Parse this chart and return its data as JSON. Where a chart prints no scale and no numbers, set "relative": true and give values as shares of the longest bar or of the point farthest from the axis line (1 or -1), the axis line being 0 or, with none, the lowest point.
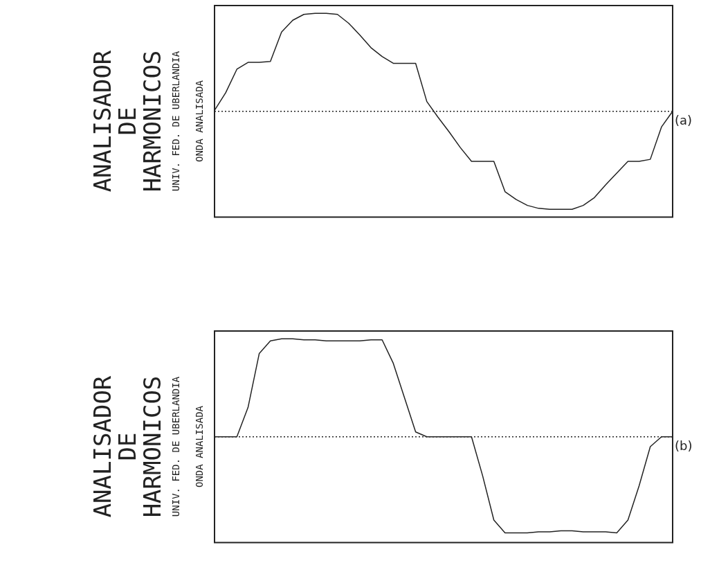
{
  "chart_data": [
    {
      "type": "line",
      "relative": true,
      "title": "ANALISADOR DE HARMONICOS",
      "subtitle": "UNIV. FED. DE UBERLANDIA",
      "annotations": [
        "ONDA ANALISADA",
        "(a)"
      ],
      "ref_lines": [
        {
          "axis": "y",
          "value": 0,
          "line_style": "dotted",
          "color": "#222222"
        }
      ],
      "categories": [
        null,
        null,
        null,
        null,
        null,
        null,
        null,
        null,
        null,
        null,
        null,
        null,
        null,
        null,
        null,
        null,
        null,
        null,
        null,
        null,
        null,
        null,
        null,
        null,
        null,
        null,
        null,
        null,
        null,
        null,
        null,
        null,
        null,
        null,
        null,
        null,
        null,
        null,
        null,
        null,
        null,
        null
      ],
      "series": [
        {
          "color": "#222222",
          "values": [
            0.01,
            0.19,
            0.43,
            0.5,
            0.5,
            0.51,
            0.81,
            0.93,
            0.99,
            1,
            1,
            0.99,
            0.9,
            0.78,
            0.65,
            0.56,
            0.49,
            0.49,
            0.49,
            0.1,
            -0.06,
            -0.21,
            -0.37,
            -0.51,
            -0.51,
            -0.51,
            -0.82,
            -0.9,
            -0.96,
            -0.99,
            -1,
            -1,
            -1,
            -0.96,
            -0.88,
            -0.75,
            -0.63,
            -0.51,
            -0.51,
            -0.49,
            -0.16,
            0
          ]
        }
      ]
    },
    {
      "type": "line",
      "relative": true,
      "title": "ANALISADOR DE HARMONICOS",
      "subtitle": "UNIV. FED. DE UBERLANDIA",
      "annotations": [
        "ONDA ANALISADA",
        "(b)"
      ],
      "ref_lines": [
        {
          "axis": "y",
          "value": 0,
          "line_style": "dotted",
          "color": "#222222"
        }
      ],
      "categories": [
        null,
        null,
        null,
        null,
        null,
        null,
        null,
        null,
        null,
        null,
        null,
        null,
        null,
        null,
        null,
        null,
        null,
        null,
        null,
        null,
        null,
        null,
        null,
        null,
        null,
        null,
        null,
        null,
        null,
        null,
        null,
        null,
        null,
        null,
        null,
        null,
        null,
        null,
        null,
        null,
        null,
        null
      ],
      "series": [
        {
          "color": "#222222",
          "values": [
            0,
            0,
            0,
            0.3,
            0.85,
            0.98,
            1,
            1,
            0.99,
            0.99,
            0.98,
            0.98,
            0.98,
            0.98,
            0.99,
            0.99,
            0.75,
            0.4,
            0.05,
            0,
            0,
            0,
            0,
            0,
            -0.4,
            -0.85,
            -0.98,
            -0.98,
            -0.98,
            -0.97,
            -0.97,
            -0.96,
            -0.96,
            -0.97,
            -0.97,
            -0.97,
            -0.98,
            -0.85,
            -0.5,
            -0.1,
            0,
            0
          ]
        }
      ]
    }
  ]
}
